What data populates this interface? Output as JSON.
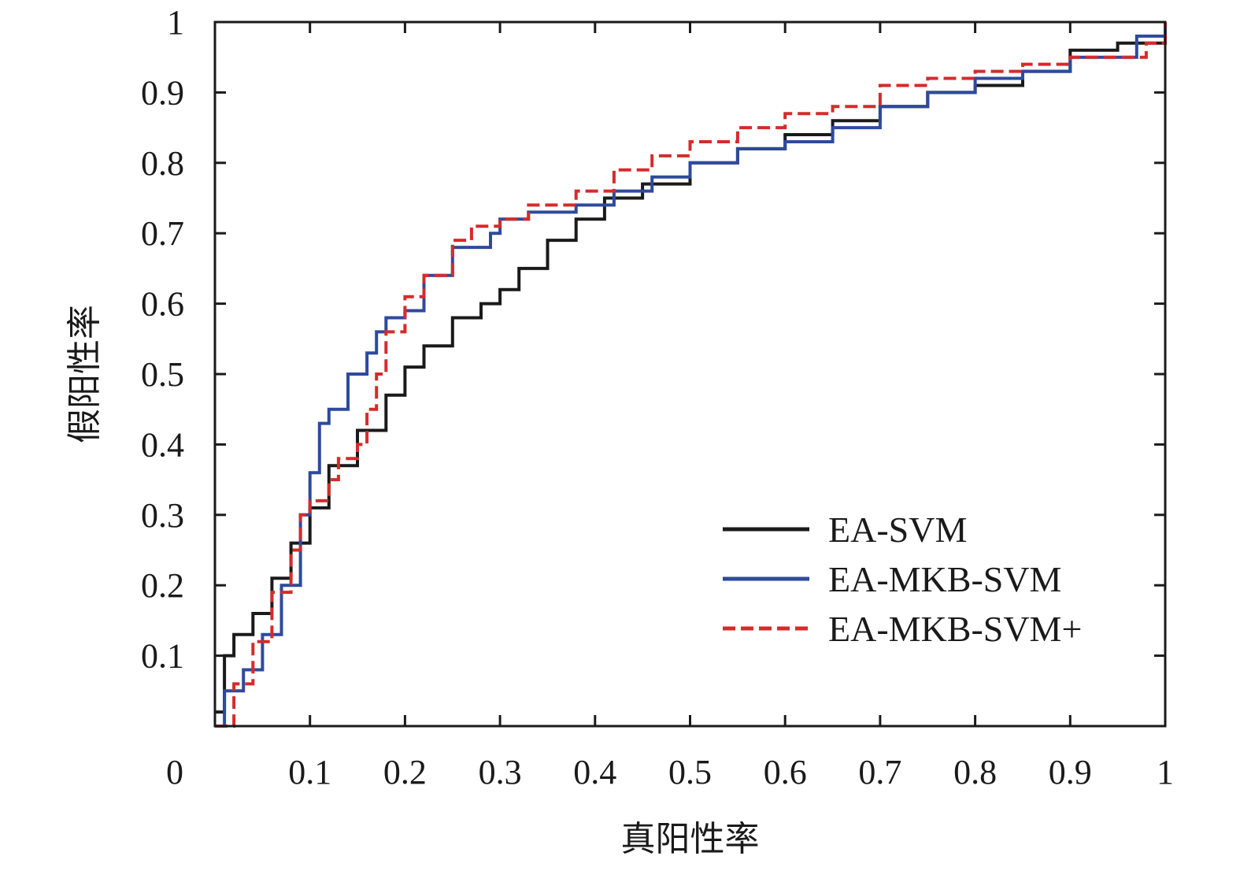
{
  "chart_data": {
    "type": "line",
    "title": "",
    "xlabel": "真阳性率",
    "ylabel": "假阳性率",
    "xlim": [
      0,
      1
    ],
    "ylim": [
      0,
      1
    ],
    "x_ticks": [
      "0",
      "0.1",
      "0.2",
      "0.3",
      "0.4",
      "0.5",
      "0.6",
      "0.7",
      "0.8",
      "0.9",
      "1"
    ],
    "y_ticks": [
      "0.1",
      "0.2",
      "0.3",
      "0.4",
      "0.5",
      "0.6",
      "0.7",
      "0.8",
      "0.9",
      "1"
    ],
    "grid": false,
    "legend_position": "bottom-right",
    "series": [
      {
        "name": "EA-SVM",
        "color": "#1a1a1a",
        "dash": "solid",
        "x": [
          0,
          0.01,
          0.02,
          0.04,
          0.06,
          0.08,
          0.1,
          0.12,
          0.15,
          0.18,
          0.2,
          0.22,
          0.25,
          0.28,
          0.3,
          0.32,
          0.35,
          0.38,
          0.41,
          0.45,
          0.5,
          0.55,
          0.6,
          0.65,
          0.7,
          0.75,
          0.8,
          0.85,
          0.9,
          0.95,
          1
        ],
        "y": [
          0.02,
          0.1,
          0.13,
          0.16,
          0.21,
          0.26,
          0.31,
          0.37,
          0.42,
          0.47,
          0.51,
          0.54,
          0.58,
          0.6,
          0.62,
          0.65,
          0.69,
          0.72,
          0.75,
          0.77,
          0.8,
          0.82,
          0.84,
          0.86,
          0.88,
          0.9,
          0.91,
          0.93,
          0.96,
          0.97,
          1
        ]
      },
      {
        "name": "EA-MKB-SVM",
        "color": "#2e4a9e",
        "dash": "solid",
        "x": [
          0,
          0.01,
          0.03,
          0.05,
          0.07,
          0.09,
          0.1,
          0.11,
          0.12,
          0.14,
          0.16,
          0.17,
          0.18,
          0.2,
          0.22,
          0.25,
          0.29,
          0.3,
          0.33,
          0.38,
          0.42,
          0.46,
          0.5,
          0.55,
          0.6,
          0.65,
          0.7,
          0.75,
          0.8,
          0.85,
          0.9,
          0.95,
          0.97,
          1
        ],
        "y": [
          0,
          0.05,
          0.08,
          0.13,
          0.2,
          0.3,
          0.36,
          0.43,
          0.45,
          0.5,
          0.53,
          0.56,
          0.58,
          0.59,
          0.64,
          0.68,
          0.7,
          0.72,
          0.73,
          0.74,
          0.76,
          0.78,
          0.8,
          0.82,
          0.83,
          0.85,
          0.88,
          0.9,
          0.92,
          0.93,
          0.95,
          0.95,
          0.98,
          1
        ]
      },
      {
        "name": "EA-MKB-SVM+",
        "color": "#d52b2b",
        "dash": "dashed",
        "x": [
          0,
          0.02,
          0.04,
          0.06,
          0.08,
          0.09,
          0.1,
          0.12,
          0.13,
          0.15,
          0.16,
          0.17,
          0.18,
          0.2,
          0.22,
          0.25,
          0.27,
          0.3,
          0.33,
          0.38,
          0.42,
          0.46,
          0.5,
          0.55,
          0.6,
          0.65,
          0.7,
          0.75,
          0.8,
          0.85,
          0.9,
          0.95,
          0.98,
          1
        ],
        "y": [
          0,
          0.06,
          0.12,
          0.19,
          0.25,
          0.3,
          0.32,
          0.35,
          0.38,
          0.4,
          0.45,
          0.5,
          0.56,
          0.61,
          0.64,
          0.69,
          0.71,
          0.72,
          0.74,
          0.76,
          0.79,
          0.81,
          0.83,
          0.85,
          0.87,
          0.88,
          0.91,
          0.92,
          0.93,
          0.94,
          0.95,
          0.95,
          0.97,
          1
        ]
      }
    ]
  }
}
